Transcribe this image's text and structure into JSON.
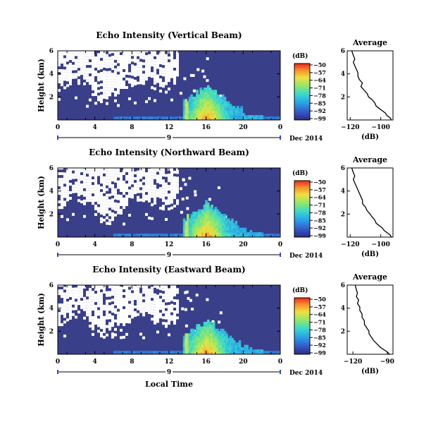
{
  "figure": {
    "xlabel_bottom": "Local Time",
    "date_label": "Dec 2014",
    "colorbar_unit": "(dB)",
    "colorbar_ticks": [
      "−50",
      "−57",
      "−64",
      "−71",
      "−78",
      "−85",
      "−92",
      "−99"
    ],
    "colors": {
      "background_fill": "#3a3f8a",
      "missing": "#ffffff"
    }
  },
  "chart_data": [
    {
      "type": "heatmap",
      "title": "Echo Intensity (Vertical Beam)",
      "ylabel": "Height (km)",
      "x_ticks": [
        "0",
        "4",
        "8",
        "12",
        "16",
        "20",
        "0"
      ],
      "y_ticks": [
        "6",
        "4",
        "2"
      ],
      "xlim_hours": [
        0,
        24
      ],
      "ylim_km": [
        0,
        6
      ],
      "day_marker": "9",
      "colorbar_range_db": [
        -99,
        -50
      ],
      "features": {
        "missing_region_hours": [
          0,
          13
        ],
        "echo_burst_hours": [
          13.5,
          22
        ],
        "peak_hour": 16
      }
    },
    {
      "type": "line",
      "title": "Average",
      "xlabel": "(dB)",
      "x_ticks": [
        "−120",
        "−100"
      ],
      "y_ticks": [
        "6",
        "4",
        "2"
      ],
      "xlim": [
        -122,
        -92
      ],
      "ylim": [
        0,
        6
      ],
      "profile": {
        "x": [
          -119,
          -118,
          -117,
          -118,
          -117,
          -116,
          -115,
          -115,
          -114,
          -112,
          -113,
          -111,
          -109,
          -108,
          -106,
          -104,
          -103,
          -101,
          -99,
          -97,
          -96,
          -94,
          -93
        ],
        "y": [
          6.0,
          5.6,
          5.3,
          5.0,
          4.7,
          4.4,
          4.1,
          3.8,
          3.5,
          3.2,
          2.9,
          2.6,
          2.3,
          2.0,
          1.8,
          1.5,
          1.2,
          1.0,
          0.8,
          0.6,
          0.4,
          0.2,
          0.0
        ]
      }
    },
    {
      "type": "heatmap",
      "title": "Echo Intensity (Northward Beam)",
      "ylabel": "Height (km)",
      "x_ticks": [
        "0",
        "4",
        "8",
        "12",
        "16",
        "20",
        "0"
      ],
      "y_ticks": [
        "6",
        "4",
        "2"
      ],
      "xlim_hours": [
        0,
        24
      ],
      "ylim_km": [
        0,
        6
      ],
      "day_marker": "9",
      "colorbar_range_db": [
        -99,
        -50
      ],
      "features": {
        "missing_region_hours": [
          0,
          13
        ],
        "echo_burst_hours": [
          13.5,
          22
        ],
        "peak_hour": 16
      }
    },
    {
      "type": "line",
      "title": "Average",
      "xlabel": "(dB)",
      "x_ticks": [
        "−120",
        "−100"
      ],
      "y_ticks": [
        "6",
        "4",
        "2"
      ],
      "xlim": [
        -122,
        -92
      ],
      "ylim": [
        0,
        6
      ],
      "profile": {
        "x": [
          -119,
          -118,
          -117,
          -118,
          -117,
          -116,
          -115,
          -114,
          -113,
          -112,
          -112,
          -110,
          -109,
          -107,
          -106,
          -104,
          -103,
          -101,
          -99,
          -98,
          -96,
          -94,
          -93
        ],
        "y": [
          6.0,
          5.6,
          5.3,
          5.0,
          4.7,
          4.4,
          4.1,
          3.8,
          3.5,
          3.2,
          2.9,
          2.6,
          2.3,
          2.0,
          1.8,
          1.5,
          1.2,
          1.0,
          0.8,
          0.6,
          0.4,
          0.2,
          0.0
        ]
      }
    },
    {
      "type": "heatmap",
      "title": "Echo Intensity (Eastward Beam)",
      "ylabel": "Height (km)",
      "x_ticks": [
        "0",
        "4",
        "8",
        "12",
        "16",
        "20",
        "0"
      ],
      "y_ticks": [
        "6",
        "4",
        "2"
      ],
      "xlim_hours": [
        0,
        24
      ],
      "ylim_km": [
        0,
        6
      ],
      "day_marker": "9",
      "colorbar_range_db": [
        -99,
        -50
      ],
      "features": {
        "missing_region_hours": [
          0,
          13
        ],
        "echo_burst_hours": [
          13.5,
          22
        ],
        "peak_hour": 16
      }
    },
    {
      "type": "line",
      "title": "Average",
      "xlabel": "(dB)",
      "x_ticks": [
        "−120",
        "−90"
      ],
      "y_ticks": [
        "6",
        "4",
        "2"
      ],
      "xlim": [
        -125,
        -85
      ],
      "ylim": [
        0,
        6
      ],
      "profile": {
        "x": [
          -118,
          -117,
          -116,
          -117,
          -115,
          -116,
          -114,
          -114,
          -112,
          -112,
          -110,
          -110,
          -108,
          -106,
          -106,
          -104,
          -102,
          -100,
          -98,
          -96,
          -93,
          -90,
          -88
        ],
        "y": [
          6.0,
          5.6,
          5.3,
          5.0,
          4.7,
          4.4,
          4.1,
          3.8,
          3.5,
          3.2,
          2.9,
          2.6,
          2.3,
          2.0,
          1.8,
          1.5,
          1.2,
          1.0,
          0.8,
          0.6,
          0.4,
          0.2,
          0.0
        ]
      }
    }
  ]
}
